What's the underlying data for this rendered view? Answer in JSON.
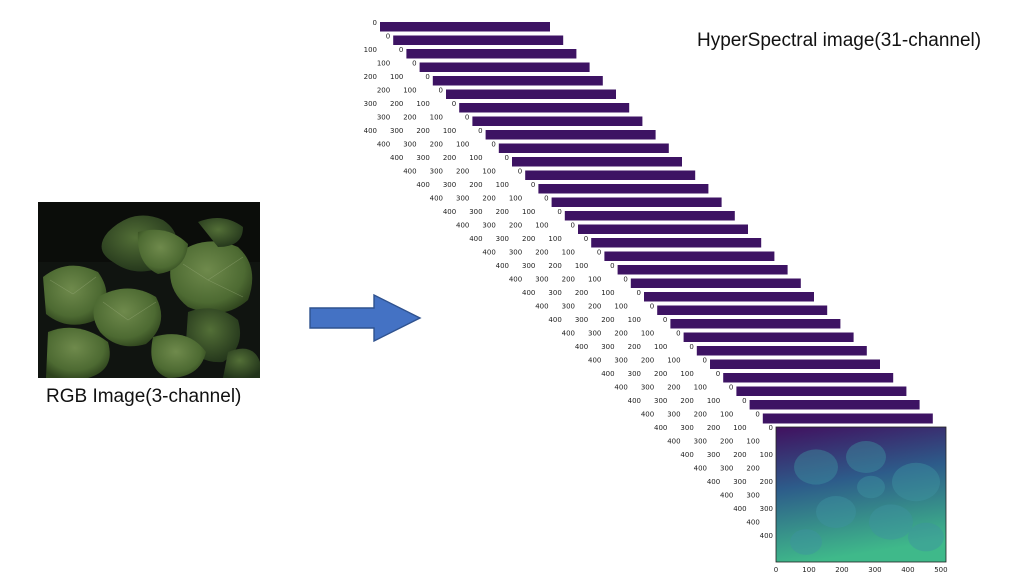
{
  "rgb_caption": "RGB Image(3-channel)",
  "hsi_caption": "HyperSpectral image(31-channel)",
  "stack": {
    "channels": 31,
    "y_ticks": [
      "0",
      "100",
      "200",
      "300",
      "400"
    ],
    "x_ticks": [
      "0",
      "100",
      "200",
      "300",
      "400",
      "500"
    ]
  },
  "colors": {
    "arrow_fill": "#4472c4",
    "arrow_edge": "#2f528f",
    "band_color": "#3d1363",
    "final_band_low": "#41105f",
    "final_band_high": "#3fb98a"
  }
}
